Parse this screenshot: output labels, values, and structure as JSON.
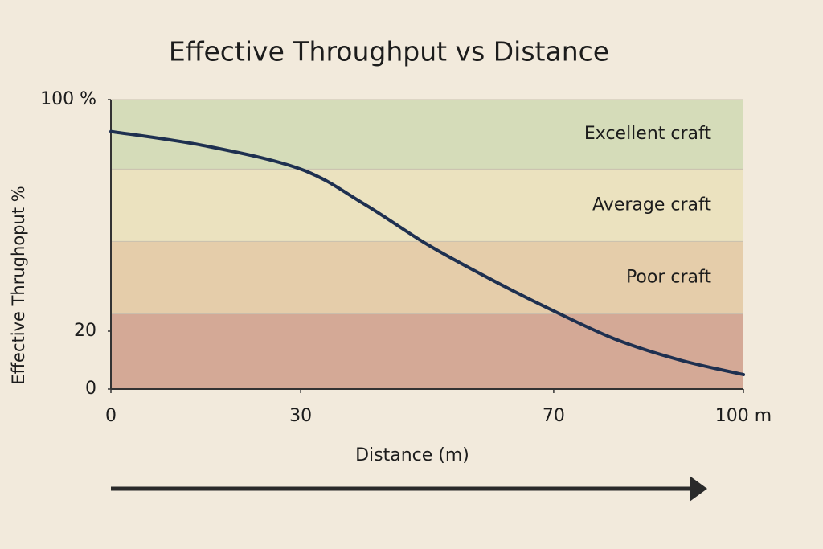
{
  "chart_data": {
    "type": "line",
    "title": "Effective Throughput vs Distance",
    "x_label": "Distance (m)",
    "y_label": "Effective Thrughoput %",
    "x": [
      0,
      15,
      30,
      40,
      50,
      60,
      70,
      80,
      90,
      100
    ],
    "series": [
      {
        "name": null,
        "color": "#1e3050",
        "values": [
          89,
          84,
          76,
          64,
          50,
          38,
          27,
          17,
          10,
          5
        ]
      }
    ],
    "xlim": [
      0,
      100
    ],
    "xticks": [
      0,
      30,
      70,
      {
        "value": 100,
        "label": "100 m"
      }
    ],
    "ylim": [
      0,
      100
    ],
    "yticks": [
      0,
      20,
      {
        "value": 100,
        "label": "100 %"
      }
    ],
    "bands": [
      {
        "from": 76,
        "to": 100,
        "label": "Excellent craft",
        "color": "#d5dcb9"
      },
      {
        "from": 51,
        "to": 76,
        "label": "Average craft",
        "color": "#ebe2bf"
      },
      {
        "from": 26,
        "to": 51,
        "label": "Poor craft",
        "color": "#e5cdaa"
      },
      {
        "from": 0,
        "to": 26,
        "label": null,
        "color": "#d4a996"
      }
    ]
  }
}
